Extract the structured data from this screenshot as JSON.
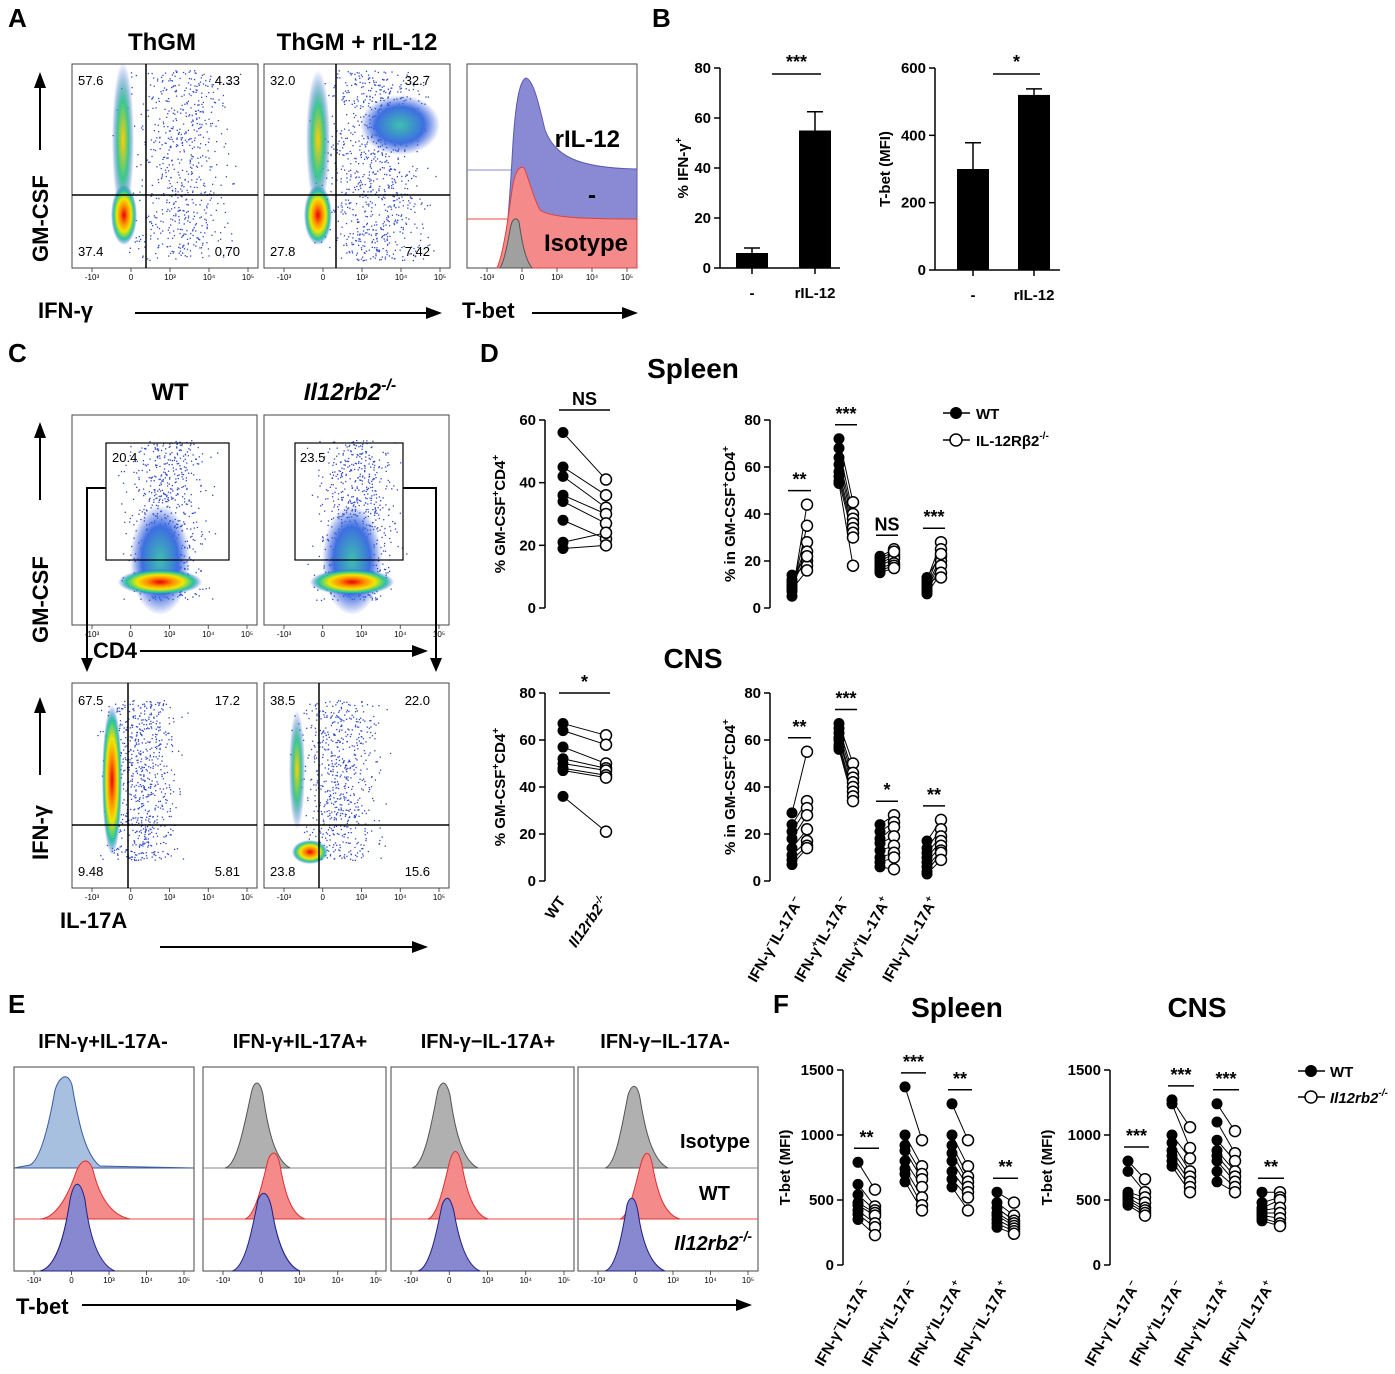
{
  "panel_labels": {
    "A": "A",
    "B": "B",
    "C": "C",
    "D": "D",
    "E": "E",
    "F": "F"
  },
  "panel_a": {
    "left_title": "ThGM",
    "right_title": "ThGM + rIL-12",
    "y_axis": "GM-CSF",
    "x_axis": "IFN-γ",
    "hist_axis": "T-bet",
    "left_quadrants": {
      "tl": "57.6",
      "tr": "4.33",
      "bl": "37.4",
      "br": "0.70"
    },
    "right_quadrants": {
      "tl": "32.0",
      "tr": "32.7",
      "bl": "27.8",
      "br": "7.42"
    },
    "hist_labels": {
      "top": "rIL-12",
      "mid": "-",
      "bottom": "Isotype"
    }
  },
  "panel_c": {
    "wt_title": "WT",
    "ko_title": "Il12rb2-/-",
    "ko_title_main": "Il12rb2",
    "ko_title_sup": "-/-",
    "top_y_axis": "GM-CSF",
    "top_x_axis": "CD4",
    "wt_gate": "20.4",
    "ko_gate": "23.5",
    "bottom_y_axis": "IFN-γ",
    "bottom_x_axis": "IL-17A",
    "wt_quadrants": {
      "tl": "67.5",
      "tr": "17.2",
      "bl": "9.48",
      "br": "5.81"
    },
    "ko_quadrants": {
      "tl": "38.5",
      "tr": "22.0",
      "bl": "23.8",
      "br": "15.6"
    }
  },
  "panel_d": {
    "spleen_title": "Spleen",
    "cns_title": "CNS"
  },
  "panel_e": {
    "titles": [
      "IFN-γ+IL-17A-",
      "IFN-γ+IL-17A+",
      "IFN-γ−IL-17A+",
      "IFN-γ−IL-17A-"
    ],
    "labels": {
      "isotype": "Isotype",
      "wt": "WT",
      "ko": "Il12rb2-/-",
      "ko_main": "Il12rb2",
      "ko_sup": "-/-"
    },
    "x_axis": "T-bet"
  },
  "panel_f": {
    "spleen_title": "Spleen",
    "cns_title": "CNS"
  },
  "flow_tick_labels": [
    "-10³",
    "0",
    "10³",
    "10⁴",
    "10⁵"
  ],
  "colors": {
    "isotype": "#9a9a9a",
    "wt": "#f04848",
    "ko": "#7272c8",
    "rIL12": "#8a8ad4",
    "bar": "#000000"
  },
  "chart_data": [
    {
      "id": "B1",
      "type": "bar",
      "ylabel": "% IFN-γ+",
      "categories": [
        "-",
        "rIL-12"
      ],
      "values": [
        6,
        55
      ],
      "errors": [
        2,
        7.5
      ],
      "ylim": [
        0,
        80
      ],
      "yticks": [
        0,
        20,
        40,
        60,
        80
      ],
      "significance": "***"
    },
    {
      "id": "B2",
      "type": "bar",
      "ylabel": "T-bet (MFI)",
      "categories": [
        "-",
        "rIL-12"
      ],
      "values": [
        300,
        520
      ],
      "errors": [
        78,
        18
      ],
      "ylim": [
        0,
        600
      ],
      "yticks": [
        0,
        200,
        400,
        600
      ],
      "significance": "*"
    },
    {
      "id": "D_spleen_total",
      "type": "paired_scatter",
      "ylabel": "% GM-CSF+CD4+",
      "ylim": [
        0,
        60
      ],
      "yticks": [
        0,
        20,
        40,
        60
      ],
      "groups": [
        {
          "wt": [
            56,
            45,
            42,
            36,
            34,
            28,
            21,
            19
          ],
          "ko": [
            41,
            36,
            32,
            30,
            27,
            22,
            24,
            20
          ]
        }
      ],
      "significance": [
        "NS"
      ],
      "categories": []
    },
    {
      "id": "D_spleen_subsets",
      "type": "paired_scatter",
      "ylabel": "% in GM-CSF+CD4+",
      "ylim": [
        0,
        80
      ],
      "yticks": [
        0,
        20,
        40,
        60,
        80
      ],
      "groups": [
        {
          "wt": [
            5,
            7,
            9,
            11,
            12,
            14,
            10,
            8
          ],
          "ko": [
            44,
            35,
            28,
            24,
            20,
            18,
            22,
            16
          ]
        },
        {
          "wt": [
            72,
            68,
            64,
            61,
            58,
            56,
            54,
            53
          ],
          "ko": [
            45,
            40,
            38,
            36,
            34,
            32,
            30,
            18
          ]
        },
        {
          "wt": [
            22,
            20,
            19,
            18,
            17,
            16,
            15,
            21
          ],
          "ko": [
            25,
            23,
            22,
            21,
            19,
            18,
            17,
            24
          ]
        },
        {
          "wt": [
            12,
            10,
            9,
            8,
            7,
            6,
            11,
            13
          ],
          "ko": [
            28,
            25,
            22,
            20,
            18,
            15,
            13,
            23
          ]
        }
      ],
      "significance": [
        "**",
        "***",
        "NS",
        "***"
      ],
      "categories": []
    },
    {
      "id": "D_cns_total",
      "type": "paired_scatter",
      "ylabel": "% GM-CSF+CD4+",
      "ylim": [
        0,
        80
      ],
      "yticks": [
        0,
        20,
        40,
        60,
        80
      ],
      "groups": [
        {
          "wt": [
            67,
            64,
            57,
            52,
            50,
            48,
            47,
            36
          ],
          "ko": [
            62,
            58,
            50,
            48,
            47,
            45,
            44,
            21
          ]
        }
      ],
      "significance": [
        "*"
      ],
      "categories": [
        "WT",
        "Il12rb2-/-"
      ]
    },
    {
      "id": "D_cns_subsets",
      "type": "paired_scatter",
      "ylabel": "% in GM-CSF+CD4+",
      "ylim": [
        0,
        80
      ],
      "yticks": [
        0,
        20,
        40,
        60,
        80
      ],
      "groups": [
        {
          "wt": [
            29,
            24,
            21,
            18,
            14,
            11,
            9,
            7
          ],
          "ko": [
            55,
            34,
            31,
            28,
            22,
            17,
            15,
            14
          ]
        },
        {
          "wt": [
            67,
            65,
            63,
            61,
            60,
            58,
            57,
            56
          ],
          "ko": [
            50,
            46,
            44,
            42,
            40,
            38,
            36,
            34
          ]
        },
        {
          "wt": [
            24,
            21,
            18,
            16,
            13,
            10,
            8,
            6
          ],
          "ko": [
            28,
            25,
            23,
            19,
            15,
            12,
            10,
            5
          ]
        },
        {
          "wt": [
            17,
            14,
            12,
            10,
            8,
            6,
            4,
            3
          ],
          "ko": [
            26,
            22,
            19,
            17,
            15,
            13,
            12,
            9
          ]
        }
      ],
      "significance": [
        "**",
        "***",
        "*",
        "**"
      ],
      "categories": [
        "IFN-γ-IL-17A-",
        "IFN-γ+IL-17A-",
        "IFN-γ+IL-17A+",
        "IFN-γ-IL-17A+"
      ]
    },
    {
      "id": "F_spleen",
      "type": "paired_scatter",
      "ylabel": "T-bet (MFI)",
      "ylim": [
        0,
        1500
      ],
      "yticks": [
        0,
        500,
        1000,
        1500
      ],
      "groups": [
        {
          "wt": [
            790,
            620,
            540,
            480,
            460,
            420,
            390,
            350
          ],
          "ko": [
            580,
            450,
            420,
            400,
            380,
            320,
            290,
            230
          ]
        },
        {
          "wt": [
            1370,
            1000,
            920,
            880,
            800,
            740,
            700,
            640
          ],
          "ko": [
            960,
            760,
            700,
            660,
            600,
            520,
            460,
            420
          ]
        },
        {
          "wt": [
            1240,
            1000,
            920,
            860,
            800,
            720,
            660,
            600
          ],
          "ko": [
            960,
            760,
            680,
            640,
            600,
            560,
            520,
            420
          ]
        },
        {
          "wt": [
            560,
            480,
            440,
            400,
            380,
            350,
            320,
            290
          ],
          "ko": [
            480,
            380,
            340,
            320,
            300,
            280,
            260,
            240
          ]
        }
      ],
      "significance": [
        "**",
        "***",
        "**",
        "**"
      ],
      "categories": [
        "IFN-γ-IL-17A-",
        "IFN-γ+IL-17A-",
        "IFN-γ+IL-17A+",
        "IFN-γ-IL-17A+"
      ]
    },
    {
      "id": "F_cns",
      "type": "paired_scatter",
      "ylabel": "T-bet (MFI)",
      "ylim": [
        0,
        1500
      ],
      "yticks": [
        0,
        500,
        1000,
        1500
      ],
      "groups": [
        {
          "wt": [
            800,
            720,
            560,
            540,
            520,
            500,
            480,
            460
          ],
          "ko": [
            660,
            560,
            520,
            480,
            440,
            420,
            400,
            380
          ]
        },
        {
          "wt": [
            1270,
            1240,
            1000,
            940,
            880,
            840,
            800,
            760
          ],
          "ko": [
            1060,
            900,
            820,
            720,
            680,
            640,
            600,
            560
          ]
        },
        {
          "wt": [
            1240,
            1100,
            960,
            880,
            840,
            800,
            720,
            640
          ],
          "ko": [
            1030,
            860,
            800,
            720,
            680,
            640,
            600,
            560
          ]
        },
        {
          "wt": [
            560,
            480,
            440,
            420,
            400,
            380,
            360,
            340
          ],
          "ko": [
            560,
            520,
            500,
            440,
            400,
            360,
            320,
            300
          ]
        }
      ],
      "significance": [
        "***",
        "***",
        "***",
        "**"
      ],
      "categories": [
        "IFN-γ-IL-17A-",
        "IFN-γ+IL-17A-",
        "IFN-γ+IL-17A+",
        "IFN-γ-IL-17A+"
      ]
    }
  ]
}
